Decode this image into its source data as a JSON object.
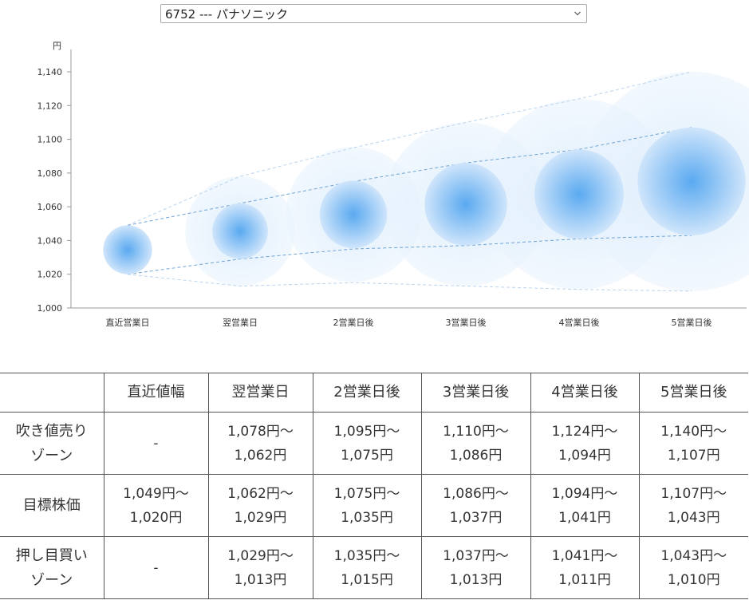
{
  "stock_selector": {
    "selected": "6752 --- パナソニック"
  },
  "chart_data": {
    "type": "bubble-range",
    "y_unit": "円",
    "ylim": [
      1000,
      1140
    ],
    "yticks": [
      "1,000",
      "1,020",
      "1,040",
      "1,060",
      "1,080",
      "1,100",
      "1,120",
      "1,140"
    ],
    "categories": [
      "直近営業日",
      "翌営業日",
      "2営業日後",
      "3営業日後",
      "4営業日後",
      "5営業日後"
    ],
    "center": [
      1034.5,
      1045.5,
      1055.5,
      1061.5,
      1067.5,
      1075
    ],
    "target_upper": [
      1049,
      1062,
      1075,
      1086,
      1094,
      1107
    ],
    "target_lower": [
      1020,
      1029,
      1035,
      1037,
      1041,
      1043
    ],
    "outer_upper": [
      1049,
      1078,
      1095,
      1110,
      1124,
      1140
    ],
    "outer_lower": [
      1020,
      1013,
      1015,
      1013,
      1011,
      1010
    ],
    "colors": {
      "bubble_core": "#5aa9f0",
      "bubble_edge": "#cfe5fb",
      "dash_inner": "#6fa4d6",
      "dash_outer": "#b9d4ee"
    }
  },
  "table": {
    "corner": "",
    "headers": [
      "直近値幅",
      "翌営業日",
      "2営業日後",
      "3営業日後",
      "4営業日後",
      "5営業日後"
    ],
    "rows": [
      {
        "label": [
          "吹き値売り",
          "ゾーン"
        ],
        "cells": [
          [
            "-"
          ],
          [
            "1,078円〜",
            "1,062円"
          ],
          [
            "1,095円〜",
            "1,075円"
          ],
          [
            "1,110円〜",
            "1,086円"
          ],
          [
            "1,124円〜",
            "1,094円"
          ],
          [
            "1,140円〜",
            "1,107円"
          ]
        ]
      },
      {
        "label": [
          "目標株価"
        ],
        "cells": [
          [
            "1,049円〜",
            "1,020円"
          ],
          [
            "1,062円〜",
            "1,029円"
          ],
          [
            "1,075円〜",
            "1,035円"
          ],
          [
            "1,086円〜",
            "1,037円"
          ],
          [
            "1,094円〜",
            "1,041円"
          ],
          [
            "1,107円〜",
            "1,043円"
          ]
        ]
      },
      {
        "label": [
          "押し目買い",
          "ゾーン"
        ],
        "cells": [
          [
            "-"
          ],
          [
            "1,029円〜",
            "1,013円"
          ],
          [
            "1,035円〜",
            "1,015円"
          ],
          [
            "1,037円〜",
            "1,013円"
          ],
          [
            "1,041円〜",
            "1,011円"
          ],
          [
            "1,043円〜",
            "1,010円"
          ]
        ]
      }
    ]
  }
}
